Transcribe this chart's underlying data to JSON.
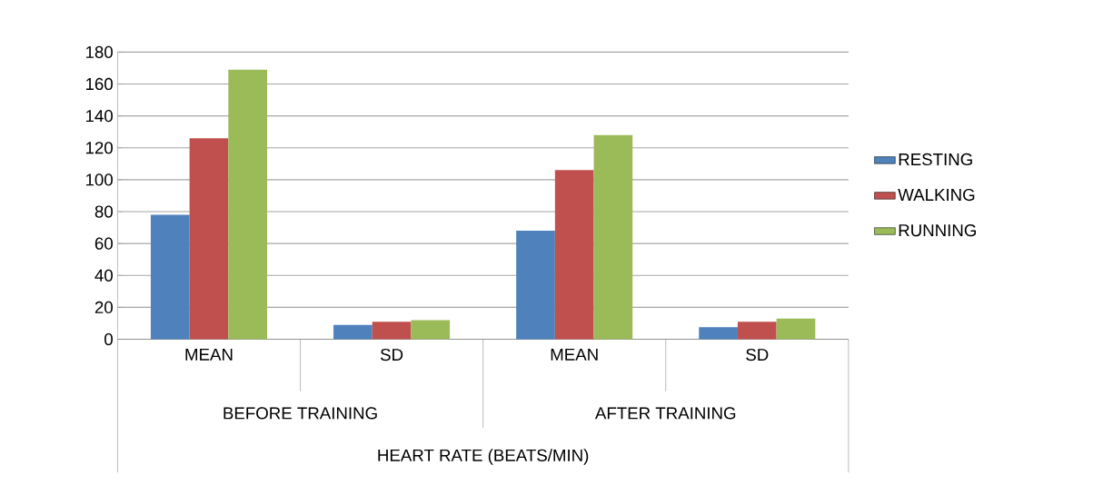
{
  "chart_data": {
    "type": "bar",
    "categories": [
      "MEAN",
      "SD",
      "MEAN",
      "SD"
    ],
    "annotations": [
      "BEFORE TRAINING",
      "AFTER TRAINING",
      "HEART RATE (BEATS/MIN)"
    ],
    "series": [
      {
        "name": "RESTING",
        "color": "#4f81bd",
        "values": [
          78,
          9,
          68,
          7.5
        ]
      },
      {
        "name": "WALKING",
        "color": "#c0504d",
        "values": [
          126,
          11,
          106,
          11
        ]
      },
      {
        "name": "RUNNING",
        "color": "#9bbb59",
        "values": [
          169,
          12,
          128,
          13
        ]
      }
    ],
    "ylim": [
      0,
      180
    ],
    "yticks": [
      0,
      20,
      40,
      60,
      80,
      100,
      120,
      140,
      160,
      180
    ],
    "grid": "y",
    "legend": "right"
  }
}
